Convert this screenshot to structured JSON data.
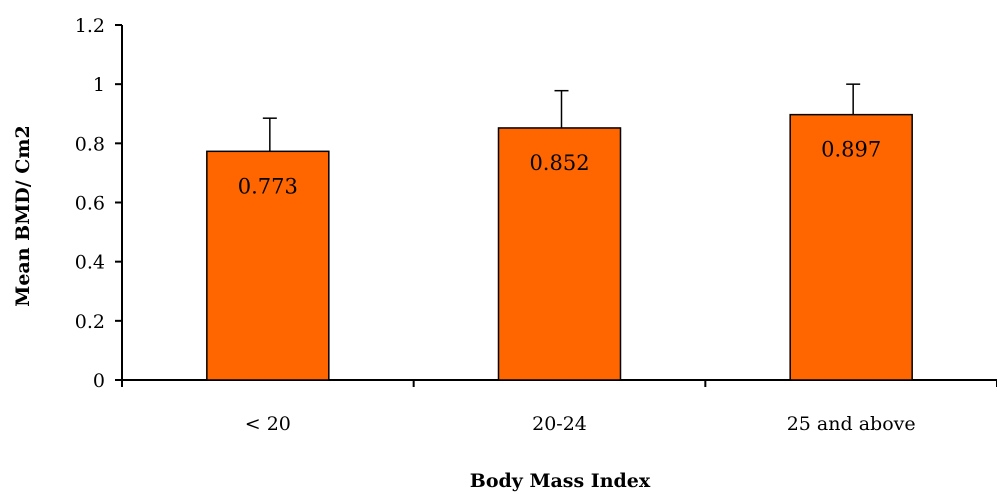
{
  "chart_data": {
    "type": "bar",
    "title": "",
    "xlabel": "Body Mass Index",
    "ylabel": "Mean BMD/ Cm2",
    "categories": [
      "< 20",
      "20-24",
      "25 and above"
    ],
    "values": [
      0.773,
      0.852,
      0.897
    ],
    "error_upper": [
      0.885,
      0.978,
      1.0
    ],
    "data_labels": [
      "0.773",
      "0.852",
      "0.897"
    ],
    "ylim": [
      0,
      1.2
    ],
    "yticks": [
      0,
      0.2,
      0.4,
      0.6,
      0.8,
      1,
      1.2
    ],
    "ytick_labels": [
      "0",
      "0.2",
      "0.4",
      "0.6",
      "0.8",
      "1",
      "1.2"
    ],
    "grid": false,
    "legend": "none",
    "colors": {
      "bar_fill": "#ff6600",
      "bar_stroke": "#000000",
      "axis": "#000000"
    }
  }
}
